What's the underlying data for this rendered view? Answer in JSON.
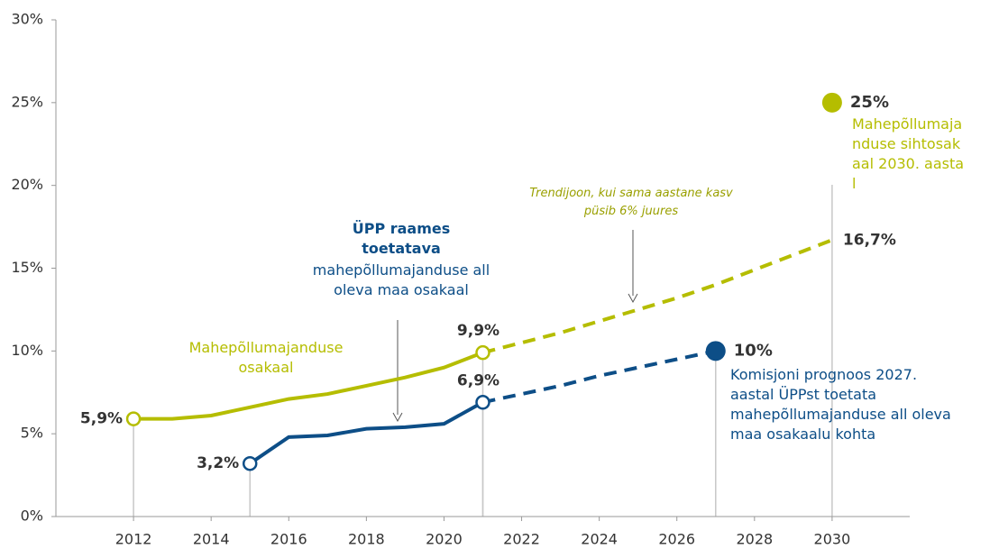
{
  "chart_data": {
    "type": "line",
    "xlim": [
      2010,
      2032
    ],
    "ylim": [
      0,
      30
    ],
    "xticks": [
      2012,
      2014,
      2016,
      2018,
      2020,
      2022,
      2024,
      2026,
      2028,
      2030
    ],
    "yticks": [
      {
        "value": 0,
        "label": "0%"
      },
      {
        "value": 5,
        "label": "5%"
      },
      {
        "value": 10,
        "label": "10%"
      },
      {
        "value": 15,
        "label": "15%"
      },
      {
        "value": 20,
        "label": "20%"
      },
      {
        "value": 25,
        "label": "25%"
      },
      {
        "value": 30,
        "label": "30%"
      }
    ],
    "series": [
      {
        "name": "Mahepõllumajanduse osakaal",
        "color": "#b5bd00",
        "style": "solid",
        "x": [
          2012,
          2013,
          2014,
          2015,
          2016,
          2017,
          2018,
          2019,
          2020,
          2021
        ],
        "values": [
          5.9,
          5.9,
          6.1,
          6.6,
          7.1,
          7.4,
          7.9,
          8.4,
          9.0,
          9.9
        ],
        "value_labels": [
          "5,9%",
          null,
          null,
          null,
          null,
          null,
          null,
          null,
          null,
          "9,9%"
        ]
      },
      {
        "name": "Trendijoon, kui sama aastane kasv püsib 6% juures",
        "color": "#b5bd00",
        "style": "dashed",
        "x": [
          2021,
          2022,
          2023,
          2024,
          2025,
          2026,
          2027,
          2028,
          2029,
          2030
        ],
        "values": [
          9.9,
          10.5,
          11.1,
          11.8,
          12.5,
          13.2,
          14.0,
          14.9,
          15.8,
          16.7
        ],
        "value_labels": [
          null,
          null,
          null,
          null,
          null,
          null,
          null,
          null,
          null,
          "16,7%"
        ]
      },
      {
        "color": "#0d4e87",
        "style": "solid",
        "x": [
          2015,
          2016,
          2017,
          2018,
          2019,
          2020,
          2021
        ],
        "values": [
          3.2,
          4.8,
          4.9,
          5.3,
          5.4,
          5.6,
          6.9
        ],
        "value_labels": [
          "3,2%",
          null,
          null,
          null,
          null,
          null,
          "6,9%"
        ]
      },
      {
        "color": "#0d4e87",
        "style": "dashed",
        "x": [
          2021,
          2022,
          2023,
          2024,
          2025,
          2026,
          2027
        ],
        "values": [
          6.9,
          7.4,
          7.9,
          8.5,
          9.0,
          9.5,
          10.0
        ]
      }
    ],
    "targets": [
      {
        "x": 2030,
        "value": 25,
        "label": "25%",
        "color": "#b5bd00",
        "text": "Mahepõllumajanduse sihtosakaal 2030. aastal"
      },
      {
        "x": 2027,
        "value": 10,
        "label": "10%",
        "color": "#0d4e87",
        "text": "Komisjoni prognoos 2027. aastal ÜPPst toetata mahepõllumajanduse all oleva maa osakaalu kohta"
      }
    ],
    "annotation": {
      "bold": "ÜPP raames toetatava",
      "text": "mahepõllumajanduse all oleva maa osakaal"
    }
  }
}
